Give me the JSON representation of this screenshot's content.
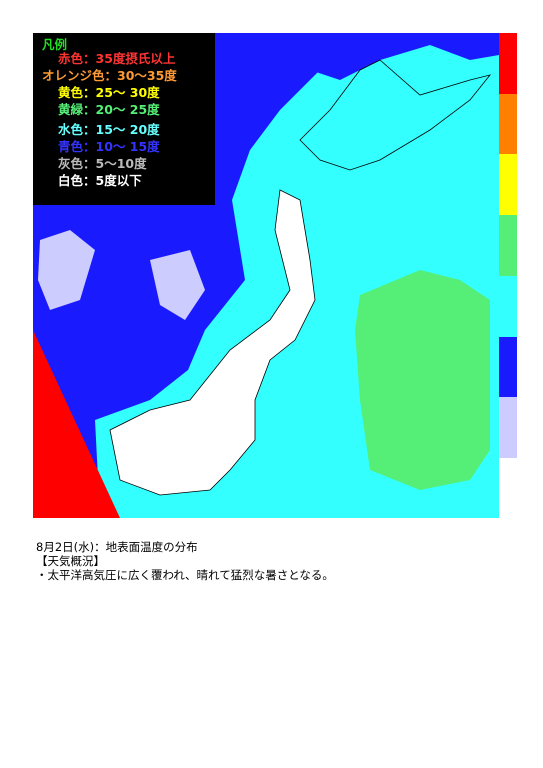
{
  "legend": {
    "title": "凡例",
    "title_color": "#22dd22",
    "items": [
      {
        "label": "赤色：35度摂氏以上",
        "color": "#ff3333"
      },
      {
        "label": "オレンジ色：30〜35度",
        "color": "#ff9933"
      },
      {
        "label": "黄色：25〜 30度",
        "color": "#ffff00"
      },
      {
        "label": "黄緑：20〜 25度",
        "color": "#55ee77"
      },
      {
        "label": "水色：15〜 20度",
        "color": "#66ffff"
      },
      {
        "label": "青色：10〜 15度",
        "color": "#3333ff"
      },
      {
        "label": "灰色：5〜10度",
        "color": "#bbbbbb"
      },
      {
        "label": "白色：5度以下",
        "color": "#ffffff"
      }
    ]
  },
  "caption": {
    "date_line": "8月2日(水)：地表面温度の分布",
    "heading": "【天気概況】",
    "summary": "・太平洋高気圧に広く覆われ、晴れて猛烈な暑さとなる。"
  }
}
